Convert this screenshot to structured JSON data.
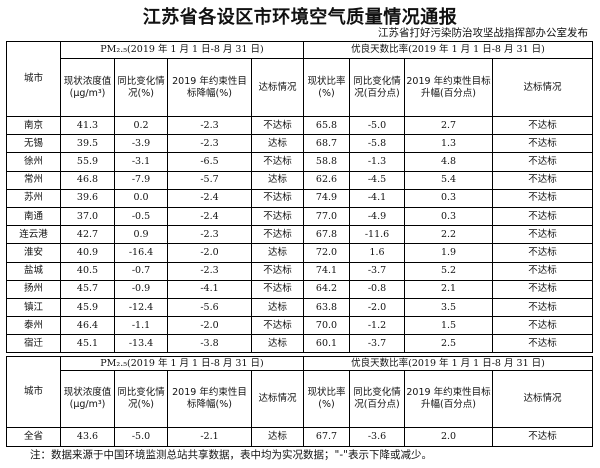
{
  "title": "江苏省各设区市环境空气质量情况通报",
  "publisher": "江苏省打好污染防治攻坚战指挥部办公室发布",
  "table1": {
    "city_header": "城市",
    "pm_group": "PM₂.₅(2019 年 1 月 1 日-8 月 31 日)",
    "good_group": "优良天数比率(2019 年 1 月 1 日-8 月 31 日)",
    "headers": [
      "现状浓度值(μg/m³)",
      "同比变化情况(%)",
      "2019 年约束性目标降幅(%)",
      "达标情况",
      "现状比率(%)",
      "同比变化情况(百分点)",
      "2019 年约束性目标升幅(百分点)",
      "达标情况"
    ],
    "rows": [
      [
        "南京",
        "41.3",
        "0.2",
        "-2.3",
        "不达标",
        "65.8",
        "-5.0",
        "2.7",
        "不达标"
      ],
      [
        "无锡",
        "39.5",
        "-3.9",
        "-2.3",
        "达标",
        "68.7",
        "-5.8",
        "1.3",
        "不达标"
      ],
      [
        "徐州",
        "55.9",
        "-3.1",
        "-6.5",
        "不达标",
        "58.8",
        "-1.3",
        "4.8",
        "不达标"
      ],
      [
        "常州",
        "46.8",
        "-7.9",
        "-5.7",
        "达标",
        "62.6",
        "-4.5",
        "5.4",
        "不达标"
      ],
      [
        "苏州",
        "39.6",
        "0.0",
        "-2.4",
        "不达标",
        "74.9",
        "-4.1",
        "0.3",
        "不达标"
      ],
      [
        "南通",
        "37.0",
        "-0.5",
        "-2.4",
        "不达标",
        "77.0",
        "-4.9",
        "0.3",
        "不达标"
      ],
      [
        "连云港",
        "42.7",
        "0.9",
        "-2.3",
        "不达标",
        "67.8",
        "-11.6",
        "2.2",
        "不达标"
      ],
      [
        "淮安",
        "40.9",
        "-16.4",
        "-2.0",
        "达标",
        "72.0",
        "1.6",
        "1.9",
        "不达标"
      ],
      [
        "盐城",
        "40.5",
        "-0.7",
        "-2.3",
        "不达标",
        "74.1",
        "-3.7",
        "5.2",
        "不达标"
      ],
      [
        "扬州",
        "45.7",
        "-0.9",
        "-4.1",
        "不达标",
        "64.2",
        "-0.8",
        "2.1",
        "不达标"
      ],
      [
        "镇江",
        "45.9",
        "-12.4",
        "-5.6",
        "达标",
        "63.8",
        "-2.0",
        "3.5",
        "不达标"
      ],
      [
        "泰州",
        "46.4",
        "-1.1",
        "-2.0",
        "不达标",
        "70.0",
        "-1.2",
        "1.5",
        "不达标"
      ],
      [
        "宿迁",
        "45.1",
        "-13.4",
        "-3.8",
        "达标",
        "60.1",
        "-3.7",
        "2.5",
        "不达标"
      ]
    ]
  },
  "table2": {
    "city_header": "城市",
    "pm_group": "PM₂.₅(2019 年 1 月 1 日-8 月 31 日)",
    "good_group": "优良天数比率(2019 年 1 月 1 日-8 月 31 日)",
    "headers": [
      "现状浓度值(μg/m³)",
      "同比变化情况(%)",
      "2019 年约束性目标降幅(%)",
      "达标情况",
      "现状比率(%)",
      "同比变化情况(百分点)",
      "2019 年约束性目标升幅(百分点)",
      "达标情况"
    ],
    "rows": [
      [
        "全省",
        "43.6",
        "-5.0",
        "-2.1",
        "达标",
        "67.7",
        "-3.6",
        "2.0",
        "不达标"
      ]
    ]
  },
  "note": "注：数据来源于中国环境监测总站共享数据，表中均为实况数据；\"-\"表示下降或减少。"
}
